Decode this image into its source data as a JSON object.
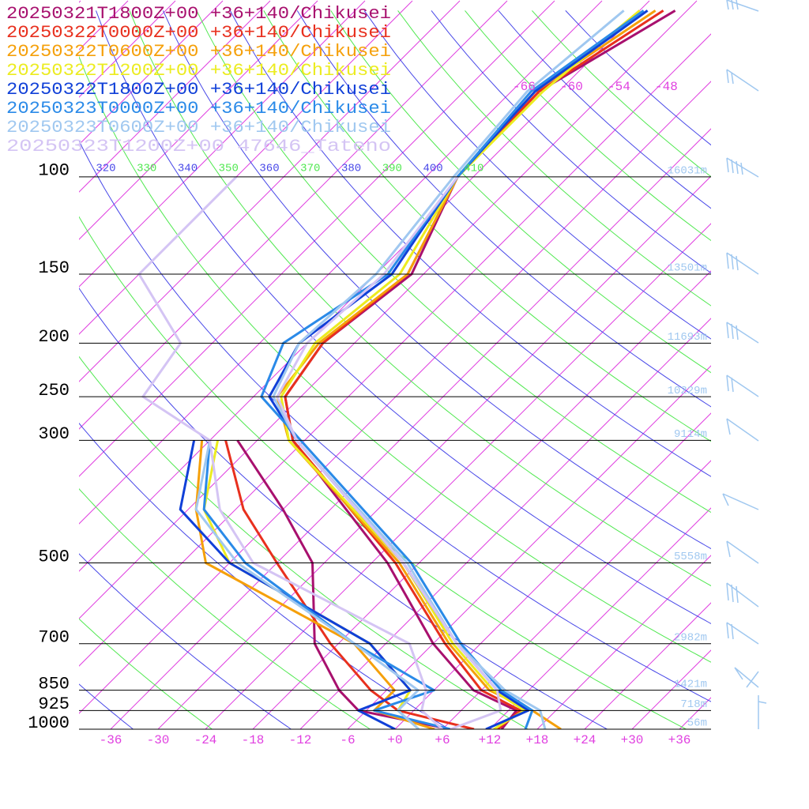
{
  "chart_data": {
    "type": "skewt",
    "xlim": [
      -40,
      40
    ],
    "ylim": [
      1000,
      48
    ],
    "log_scale_y": true,
    "xticks": [
      {
        "value": -36,
        "label": "-36"
      },
      {
        "value": -30,
        "label": "-30"
      },
      {
        "value": -24,
        "label": "-24"
      },
      {
        "value": -18,
        "label": "-18"
      },
      {
        "value": -12,
        "label": "-12"
      },
      {
        "value": -6,
        "label": "-6"
      },
      {
        "value": 0,
        "label": "+0"
      },
      {
        "value": 6,
        "label": "+6"
      },
      {
        "value": 12,
        "label": "+12"
      },
      {
        "value": 18,
        "label": "+18"
      },
      {
        "value": 24,
        "label": "+24"
      },
      {
        "value": 30,
        "label": "+30"
      },
      {
        "value": 36,
        "label": "+36"
      }
    ],
    "yticks": [
      100,
      150,
      200,
      250,
      300,
      500,
      700,
      850,
      925,
      1000
    ],
    "height_labels": [
      "16031m",
      "13501m",
      "11693m",
      "10229m",
      "9114m",
      "5558m",
      "2982m",
      "1421m",
      "718m",
      "56m"
    ],
    "isotherm_labels": [
      -66,
      -60,
      -54,
      -48
    ],
    "theta_labels": [
      320,
      330,
      340,
      350,
      360,
      370,
      380,
      390,
      400,
      410
    ],
    "adiabat_colors": [
      "#4848e8",
      "#50e850"
    ],
    "isotherm_color": "#e040e0",
    "temperature_levels": [
      1000,
      925,
      850,
      700,
      500,
      300,
      250,
      200,
      150,
      100,
      70,
      50
    ],
    "dewpoint_levels": [
      1000,
      925,
      850,
      700,
      500,
      400,
      300,
      250,
      200,
      150,
      100
    ],
    "series": [
      {
        "name": "20250321T1800Z+00 +36+140/Chikusei",
        "color": "#a8106e",
        "temperature": [
          13.5,
          13,
          5,
          -6,
          -22,
          -49.5,
          -56,
          -58,
          -55.5,
          -62,
          -62.5,
          -55.5
        ],
        "dewpoint": [
          7,
          -7,
          -12,
          -21,
          -31.5,
          -42,
          -56.5,
          null,
          null,
          null,
          null
        ]
      },
      {
        "name": "20250322T0000Z+00 +36+140/Chikusei",
        "color": "#e8301e",
        "temperature": [
          13,
          13.5,
          6,
          -4.5,
          -21,
          -49.5,
          -56,
          -58,
          -56,
          -62,
          -62.5,
          -57
        ],
        "dewpoint": [
          10,
          -2,
          -8,
          -19,
          -36,
          -47,
          -58,
          null,
          null,
          null,
          null
        ]
      },
      {
        "name": "20250322T0600Z+00 +36+140/Chikusei",
        "color": "#f5a00a",
        "temperature": [
          21,
          15,
          7,
          -4,
          -20.5,
          -50,
          -57,
          -58.5,
          -56,
          -62,
          -63,
          -58
        ],
        "dewpoint": [
          5,
          -5,
          -5,
          -16,
          -45,
          -53,
          -61,
          null,
          null,
          null,
          null
        ]
      },
      {
        "name": "20250322T1200Z+00 +36+140/Chikusei",
        "color": "#ecec20",
        "temperature": [
          12.5,
          14,
          7.5,
          -3.5,
          -20,
          -50,
          -56.5,
          -59,
          -57,
          -62,
          -62,
          -60
        ],
        "dewpoint": [
          3,
          -2,
          -3,
          -14,
          -42,
          -52,
          -59,
          null,
          null,
          null,
          null
        ]
      },
      {
        "name": "20250322T1800Z+00 +36+140/Chikusei",
        "color": "#1040d8",
        "temperature": [
          11.5,
          14.5,
          8,
          -3,
          -20,
          -49,
          -58,
          -61,
          -58,
          -62,
          -63,
          -59
        ],
        "dewpoint": [
          0,
          -7,
          -3,
          -14,
          -42,
          -55,
          -62,
          null,
          null,
          null,
          null
        ]
      },
      {
        "name": "20250323T0000Z+00 +36+140/Chikusei",
        "color": "#2a8ae8",
        "temperature": [
          16.5,
          15,
          8.5,
          -2.5,
          -19,
          -48.5,
          -59,
          -63,
          -58.5,
          -62,
          -63.5,
          -59.5
        ],
        "dewpoint": [
          7,
          -5,
          0,
          -16,
          -40,
          -52,
          -60,
          null,
          null,
          null,
          null
        ]
      },
      {
        "name": "20250323T0600Z+00 +36+140/Chikusei",
        "color": "#a0c8f0",
        "temperature": [
          19,
          16,
          9,
          -3,
          -19.5,
          -49,
          -57.5,
          -61,
          -60,
          -62.5,
          -64,
          -62
        ],
        "dewpoint": [
          3,
          -2,
          -2,
          -16,
          -41,
          -53,
          -60,
          null,
          null,
          null,
          null
        ]
      },
      {
        "name": "20250323T1200Z+00 47646_Tateno",
        "color": "#d4c4f4",
        "temperature": [
          7,
          11,
          8,
          -3,
          -20,
          -49,
          -57,
          -60,
          -59,
          -62,
          null,
          null
        ],
        "dewpoint": [
          6,
          1,
          -1,
          -9,
          -39,
          -50,
          -60,
          -74,
          -76,
          -90,
          -90
        ]
      }
    ]
  }
}
